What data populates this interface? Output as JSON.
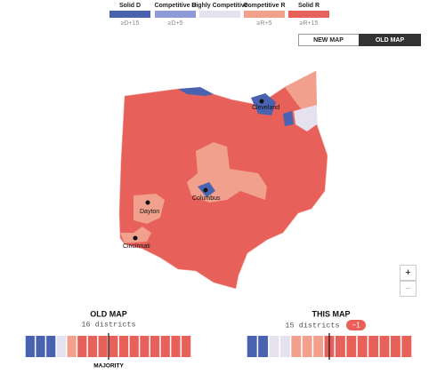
{
  "legend": [
    {
      "label": "Solid D",
      "sub": "≥D+15"
    },
    {
      "label": "Competitive D",
      "sub": "≥D+5"
    },
    {
      "label": "Highly Competitive"
    },
    {
      "label": "Competitive R",
      "sub": "≥R+5"
    },
    {
      "label": "Solid R",
      "sub": "≥R+15"
    }
  ],
  "toggle": {
    "new": "NEW MAP",
    "old": "OLD MAP"
  },
  "cities": {
    "cleveland": "Cleveland",
    "columbus": "Columbus",
    "dayton": "Dayton",
    "cincinnati": "Cincinnati"
  },
  "zoom": {
    "in": "+",
    "out": "−"
  },
  "old_map": {
    "title": "OLD MAP",
    "count": "16 districts",
    "majority": "MAJORITY"
  },
  "this_map": {
    "title": "THIS MAP",
    "count": "15 districts",
    "change": "−1"
  }
}
